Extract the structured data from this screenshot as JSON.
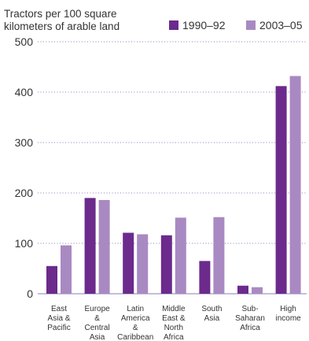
{
  "chart_data": {
    "type": "bar",
    "ylabel": "Tractors per 100 square kilometers of arable land",
    "ylabel_lines": [
      "Tractors per 100 square",
      "kilometers of arable land"
    ],
    "ylim": [
      0,
      500
    ],
    "yticks": [
      0,
      100,
      200,
      300,
      400,
      500
    ],
    "grid": "horizontal dotted",
    "legend_position": "top-right",
    "categories": [
      "East Asia & Pacific",
      "Europe & Central Asia",
      "Latin America & Caribbean",
      "Middle East & North Africa",
      "South Asia",
      "Sub-Saharan Africa",
      "High income"
    ],
    "category_lines": [
      [
        "East",
        "Asia &",
        "Pacific"
      ],
      [
        "Europe",
        "&",
        "Central",
        "Asia"
      ],
      [
        "Latin",
        "America",
        "&",
        "Caribbean"
      ],
      [
        "Middle",
        "East &",
        "North",
        "Africa"
      ],
      [
        "South",
        "Asia"
      ],
      [
        "Sub-",
        "Saharan",
        "Africa"
      ],
      [
        "High",
        "income"
      ]
    ],
    "series": [
      {
        "name": "1990–92",
        "color": "#6b2a8c",
        "values": [
          55,
          190,
          121,
          116,
          65,
          16,
          412
        ]
      },
      {
        "name": "2003–05",
        "color": "#a989c2",
        "values": [
          96,
          186,
          118,
          151,
          152,
          13,
          432
        ]
      }
    ]
  }
}
